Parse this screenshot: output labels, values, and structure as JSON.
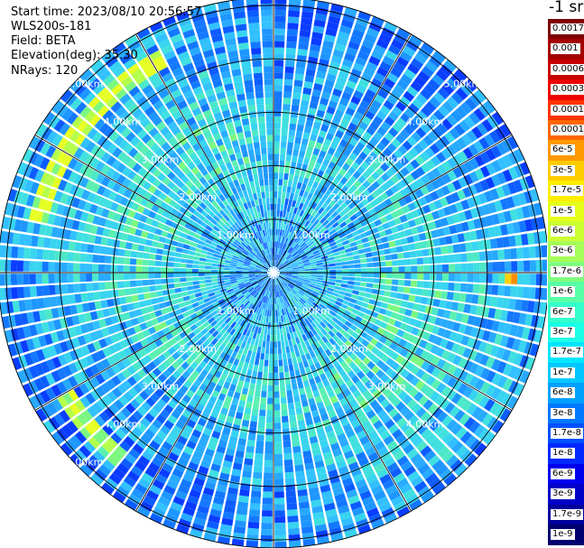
{
  "info": {
    "start_time": "Start time: 2023/08/10 20:56:57",
    "device": "WLS200s-181",
    "field": "Field: BETA",
    "elevation": "Elevation(deg): 35.30",
    "nrays": "NRays: 120"
  },
  "colorbar": {
    "unit_label": "-1 sr",
    "labels": [
      "0.0017",
      "0.001",
      "0.0006",
      "0.0003",
      "0.00017",
      "0.0001",
      "6e-5",
      "3e-5",
      "1.7e-5",
      "1e-5",
      "6e-6",
      "3e-6",
      "1.7e-6",
      "1e-6",
      "6e-7",
      "3e-7",
      "1.7e-7",
      "1e-7",
      "6e-8",
      "3e-8",
      "1.7e-8",
      "1e-8",
      "6e-9",
      "3e-9",
      "1.7e-9",
      "1e-9"
    ],
    "colors": [
      "#7f0000",
      "#a50000",
      "#c80000",
      "#ee0000",
      "#ff3300",
      "#ff6600",
      "#ff9900",
      "#ffcc00",
      "#ffee00",
      "#e6ff1a",
      "#ccff33",
      "#a6ff59",
      "#80ff80",
      "#59ffa6",
      "#33ffcc",
      "#1affe6",
      "#00e6ff",
      "#00c8ff",
      "#00a0ff",
      "#0078ff",
      "#0050ff",
      "#0028ff",
      "#0000ee",
      "#0000c8",
      "#00009c",
      "#000070"
    ]
  },
  "chart_data": {
    "type": "heatmap",
    "projection": "polar-ppi",
    "rays": 120,
    "elevation_deg": 35.3,
    "range_rings_km": [
      1,
      2,
      3,
      4,
      5
    ],
    "ring_labels": [
      "1.00km",
      "2.00km",
      "3.00km",
      "4.00km",
      "5.00km"
    ],
    "spoke_step_deg": 30,
    "value_range": [
      1e-09,
      0.0017
    ],
    "scale": "log",
    "field": "BETA"
  }
}
